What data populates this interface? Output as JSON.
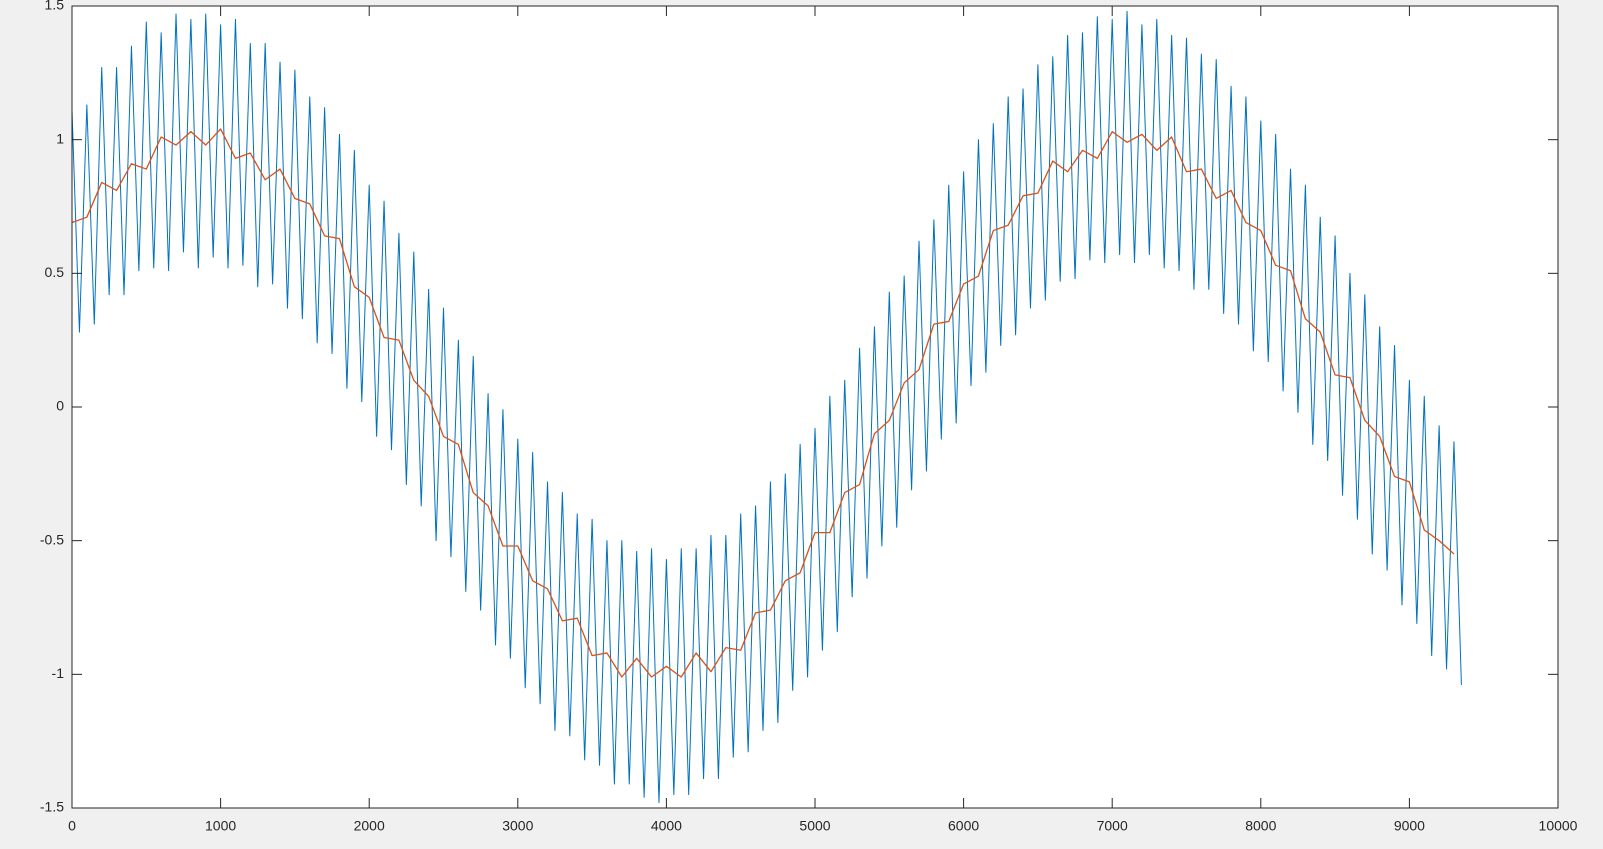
{
  "chart_data": {
    "type": "line",
    "xlim": [
      0,
      10000
    ],
    "xticks": [
      0,
      1000,
      2000,
      3000,
      4000,
      5000,
      6000,
      7000,
      8000,
      9000,
      10000
    ],
    "ylim": [
      -1.5,
      1.5
    ],
    "yticks": [
      -1.5,
      -1,
      -0.5,
      0,
      0.5,
      1,
      1.5
    ],
    "grid": false,
    "series": [
      {
        "color": "#0072bd",
        "x": [
          0,
          50,
          100,
          150,
          200,
          250,
          300,
          350,
          400,
          450,
          500,
          550,
          600,
          650,
          700,
          750,
          800,
          850,
          900,
          950,
          1000,
          1050,
          1100,
          1150,
          1200,
          1250,
          1300,
          1350,
          1400,
          1450,
          1500,
          1550,
          1600,
          1650,
          1700,
          1750,
          1800,
          1850,
          1900,
          1950,
          2000,
          2050,
          2100,
          2150,
          2200,
          2250,
          2300,
          2350,
          2400,
          2450,
          2500,
          2550,
          2600,
          2650,
          2700,
          2750,
          2800,
          2850,
          2900,
          2950,
          3000,
          3050,
          3100,
          3150,
          3200,
          3250,
          3300,
          3350,
          3400,
          3450,
          3500,
          3550,
          3600,
          3650,
          3700,
          3750,
          3800,
          3850,
          3900,
          3950,
          4000,
          4050,
          4100,
          4150,
          4200,
          4250,
          4300,
          4350,
          4400,
          4450,
          4500,
          4550,
          4600,
          4650,
          4700,
          4750,
          4800,
          4850,
          4900,
          4950,
          5000,
          5050,
          5100,
          5150,
          5200,
          5250,
          5300,
          5350,
          5400,
          5450,
          5500,
          5550,
          5600,
          5650,
          5700,
          5750,
          5800,
          5850,
          5900,
          5950,
          6000,
          6050,
          6100,
          6150,
          6200,
          6250,
          6300,
          6350,
          6400,
          6450,
          6500,
          6550,
          6600,
          6650,
          6700,
          6750,
          6800,
          6850,
          6900,
          6950,
          7000,
          7050,
          7100,
          7150,
          7200,
          7250,
          7300,
          7350,
          7400,
          7450,
          7500,
          7550,
          7600,
          7650,
          7700,
          7750,
          7800,
          7850,
          7900,
          7950,
          8000,
          8050,
          8100,
          8150,
          8200,
          8250,
          8300,
          8350,
          8400,
          8450,
          8500,
          8550,
          8600,
          8650,
          8700,
          8750,
          8800,
          8850,
          8900,
          8950,
          9000,
          9050,
          9100,
          9150,
          9200,
          9250,
          9300,
          9350
        ],
        "values": [
          1.11,
          0.28,
          1.13,
          0.31,
          1.27,
          0.42,
          1.27,
          0.42,
          1.35,
          0.51,
          1.44,
          0.52,
          1.4,
          0.51,
          1.47,
          0.58,
          1.45,
          0.52,
          1.47,
          0.56,
          1.43,
          0.52,
          1.45,
          0.53,
          1.36,
          0.45,
          1.36,
          0.46,
          1.29,
          0.37,
          1.26,
          0.33,
          1.16,
          0.24,
          1.12,
          0.2,
          1.02,
          0.07,
          0.96,
          0.02,
          0.83,
          -0.11,
          0.77,
          -0.16,
          0.65,
          -0.29,
          0.58,
          -0.37,
          0.44,
          -0.5,
          0.37,
          -0.56,
          0.25,
          -0.69,
          0.19,
          -0.76,
          0.05,
          -0.89,
          -0.01,
          -0.94,
          -0.12,
          -1.05,
          -0.17,
          -1.11,
          -0.28,
          -1.21,
          -0.32,
          -1.23,
          -0.4,
          -1.32,
          -0.42,
          -1.34,
          -0.5,
          -1.41,
          -0.5,
          -1.41,
          -0.54,
          -1.46,
          -0.53,
          -1.48,
          -0.57,
          -1.45,
          -0.53,
          -1.45,
          -0.53,
          -1.39,
          -0.48,
          -1.39,
          -0.48,
          -1.31,
          -0.4,
          -1.29,
          -0.37,
          -1.21,
          -0.28,
          -1.18,
          -0.25,
          -1.06,
          -0.14,
          -1.01,
          -0.08,
          -0.91,
          0.04,
          -0.84,
          0.1,
          -0.71,
          0.22,
          -0.64,
          0.3,
          -0.52,
          0.43,
          -0.45,
          0.49,
          -0.31,
          0.62,
          -0.24,
          0.7,
          -0.12,
          0.83,
          -0.06,
          0.88,
          0.08,
          1.0,
          0.13,
          1.06,
          0.23,
          1.16,
          0.27,
          1.19,
          0.37,
          1.28,
          0.4,
          1.31,
          0.47,
          1.39,
          0.48,
          1.4,
          0.55,
          1.46,
          0.54,
          1.45,
          0.57,
          1.48,
          0.54,
          1.43,
          0.57,
          1.45,
          0.52,
          1.39,
          0.51,
          1.38,
          0.44,
          1.32,
          0.44,
          1.3,
          0.35,
          1.2,
          0.31,
          1.16,
          0.21,
          1.07,
          0.17,
          1.02,
          0.06,
          0.89,
          -0.02,
          0.83,
          -0.14,
          0.71,
          -0.2,
          0.64,
          -0.33,
          0.5,
          -0.42,
          0.42,
          -0.55,
          0.3,
          -0.61,
          0.23,
          -0.74,
          0.1,
          -0.81,
          0.04,
          -0.93,
          -0.07,
          -0.98,
          -0.13,
          -1.04
        ]
      },
      {
        "color": "#d95319",
        "x": [
          0,
          100,
          200,
          300,
          400,
          500,
          600,
          700,
          800,
          900,
          1000,
          1100,
          1200,
          1300,
          1400,
          1500,
          1600,
          1700,
          1800,
          1900,
          2000,
          2100,
          2200,
          2300,
          2400,
          2500,
          2600,
          2700,
          2800,
          2900,
          3000,
          3100,
          3200,
          3300,
          3400,
          3500,
          3600,
          3700,
          3800,
          3900,
          4000,
          4100,
          4200,
          4300,
          4400,
          4500,
          4600,
          4700,
          4800,
          4900,
          5000,
          5100,
          5200,
          5300,
          5400,
          5500,
          5600,
          5700,
          5800,
          5900,
          6000,
          6100,
          6200,
          6300,
          6400,
          6500,
          6600,
          6700,
          6800,
          6900,
          7000,
          7100,
          7200,
          7300,
          7400,
          7500,
          7600,
          7700,
          7800,
          7900,
          8000,
          8100,
          8200,
          8300,
          8400,
          8500,
          8600,
          8700,
          8800,
          8900,
          9000,
          9100,
          9200,
          9300
        ],
        "values": [
          0.69,
          0.71,
          0.84,
          0.81,
          0.91,
          0.89,
          1.01,
          0.98,
          1.03,
          0.98,
          1.04,
          0.93,
          0.95,
          0.85,
          0.89,
          0.78,
          0.76,
          0.64,
          0.63,
          0.45,
          0.41,
          0.26,
          0.25,
          0.1,
          0.04,
          -0.11,
          -0.14,
          -0.32,
          -0.37,
          -0.52,
          -0.52,
          -0.65,
          -0.68,
          -0.8,
          -0.79,
          -0.93,
          -0.92,
          -1.01,
          -0.94,
          -1.01,
          -0.97,
          -1.01,
          -0.92,
          -0.99,
          -0.9,
          -0.91,
          -0.77,
          -0.76,
          -0.65,
          -0.62,
          -0.47,
          -0.47,
          -0.32,
          -0.29,
          -0.1,
          -0.05,
          0.09,
          0.14,
          0.31,
          0.32,
          0.46,
          0.49,
          0.66,
          0.68,
          0.79,
          0.8,
          0.92,
          0.88,
          0.96,
          0.93,
          1.03,
          0.99,
          1.02,
          0.96,
          1.01,
          0.88,
          0.89,
          0.78,
          0.81,
          0.69,
          0.66,
          0.53,
          0.51,
          0.33,
          0.28,
          0.12,
          0.11,
          -0.05,
          -0.11,
          -0.26,
          -0.28,
          -0.46,
          -0.5,
          -0.55
        ]
      }
    ]
  }
}
